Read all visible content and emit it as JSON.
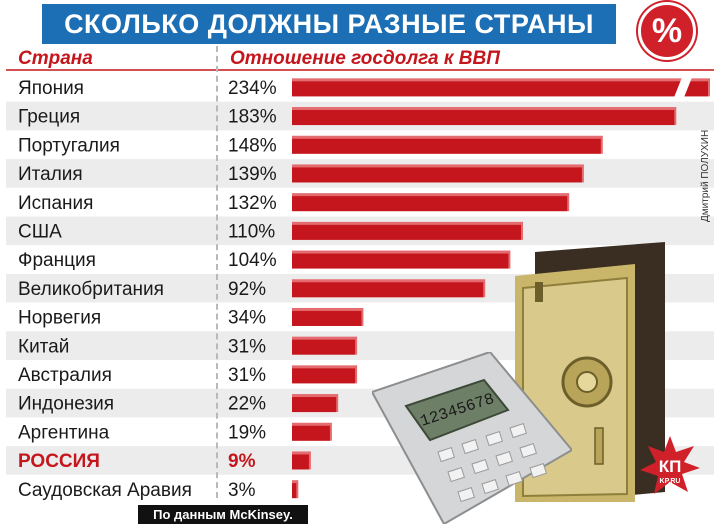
{
  "title": "СКОЛЬКО ДОЛЖНЫ РАЗНЫЕ СТРАНЫ МИРА",
  "percent_badge": "%",
  "headers": {
    "country": "Страна",
    "ratio": "Отношение госдолга к ВВП"
  },
  "source": "По данным McKinsey.",
  "photo_credit": "Дмитрий ПОЛУХИН",
  "logo": {
    "text": "КП",
    "sub": "KP.RU"
  },
  "colors": {
    "bar": "#c4161c",
    "bar_shadow": "#e46b6f",
    "title_bg": "#1d6fb5",
    "highlight": "#c4161c",
    "badge": "#d0202a"
  },
  "icons": [
    "percent-badge-icon",
    "safe-illustration",
    "calculator-illustration",
    "kp-logo"
  ],
  "chart_data": {
    "type": "bar",
    "orientation": "horizontal",
    "title": "СКОЛЬКО ДОЛЖНЫ РАЗНЫЕ СТРАНЫ МИРА",
    "xlabel": "Отношение госдолга к ВВП",
    "ylabel": "Страна",
    "unit": "%",
    "highlight": "РОССИЯ",
    "axis_break_on": "Япония",
    "categories": [
      "Япония",
      "Греция",
      "Португалия",
      "Италия",
      "Испания",
      "США",
      "Франция",
      "Великобритания",
      "Норвегия",
      "Китай",
      "Австралия",
      "Индонезия",
      "Аргентина",
      "РОССИЯ",
      "Саудовская Аравия"
    ],
    "values": [
      234,
      183,
      148,
      139,
      132,
      110,
      104,
      92,
      34,
      31,
      31,
      22,
      19,
      9,
      3
    ],
    "labels": [
      "234%",
      "183%",
      "148%",
      "139%",
      "132%",
      "110%",
      "104%",
      "92%",
      "34%",
      "31%",
      "31%",
      "22%",
      "19%",
      "9%",
      "3%"
    ]
  }
}
